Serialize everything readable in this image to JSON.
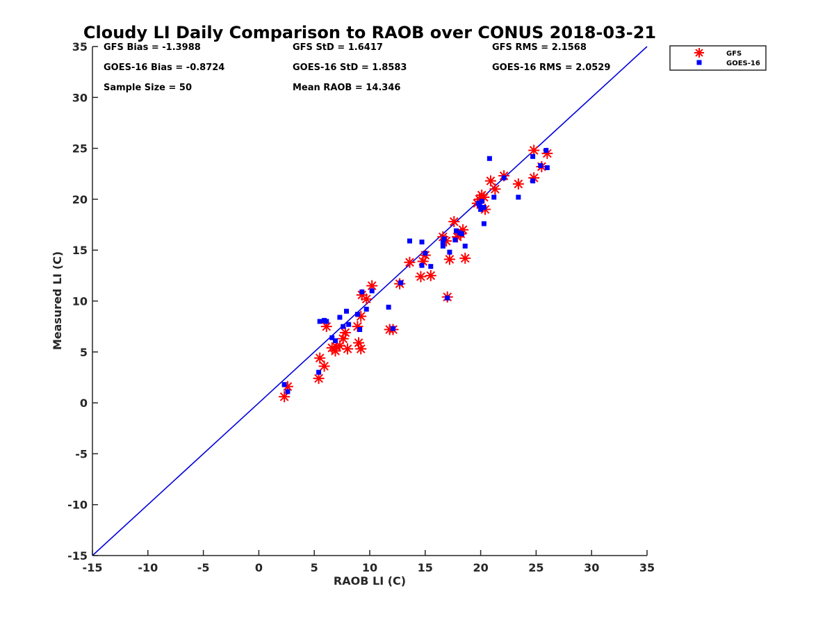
{
  "chart_data": {
    "type": "scatter",
    "title": "Cloudy LI Daily Comparison to RAOB over CONUS 2018-03-21",
    "xlabel": "RAOB LI (C)",
    "ylabel": "Measured LI (C)",
    "xlim": [
      -15,
      35
    ],
    "ylim": [
      -15,
      35
    ],
    "xticks": [
      -15,
      -10,
      -5,
      0,
      5,
      10,
      15,
      20,
      25,
      30,
      35
    ],
    "yticks": [
      -15,
      -10,
      -5,
      0,
      5,
      10,
      15,
      20,
      25,
      30,
      35
    ],
    "xtick_labels": [
      "-15",
      "-10",
      "-5",
      "0",
      "5",
      "10",
      "15",
      "20",
      "25",
      "30",
      "35"
    ],
    "ytick_labels": [
      "-15",
      "-10",
      "-5",
      "0",
      "5",
      "10",
      "15",
      "20",
      "25",
      "30",
      "35"
    ],
    "grid": false,
    "legend_position": "top-right outside",
    "reference_line": {
      "name": "1:1",
      "x": [
        -15,
        35
      ],
      "y": [
        -15,
        35
      ],
      "color": "#0000dd"
    },
    "stats": [
      [
        "GFS Bias = -1.3988",
        "GFS StD = 1.6417",
        "GFS RMS = 2.1568"
      ],
      [
        "GOES-16 Bias = -0.8724",
        "GOES-16 StD = 1.8583",
        "GOES-16 RMS = 2.0529"
      ],
      [
        "Sample Size = 50",
        "Mean RAOB = 14.346"
      ]
    ],
    "series": [
      {
        "name": "GFS",
        "marker": "asterisk",
        "color": "#ff0000",
        "points": [
          [
            2.3,
            0.6
          ],
          [
            2.6,
            1.6
          ],
          [
            5.4,
            2.4
          ],
          [
            5.5,
            4.4
          ],
          [
            5.9,
            3.6
          ],
          [
            6.1,
            7.5
          ],
          [
            6.6,
            5.4
          ],
          [
            6.9,
            5.1
          ],
          [
            7.0,
            5.5
          ],
          [
            7.3,
            5.6
          ],
          [
            7.6,
            6.3
          ],
          [
            7.8,
            6.9
          ],
          [
            8.0,
            5.3
          ],
          [
            8.9,
            7.5
          ],
          [
            9.0,
            5.9
          ],
          [
            9.2,
            5.3
          ],
          [
            9.2,
            8.5
          ],
          [
            9.3,
            10.6
          ],
          [
            9.7,
            10.2
          ],
          [
            10.2,
            11.5
          ],
          [
            11.8,
            7.2
          ],
          [
            12.1,
            7.2
          ],
          [
            12.7,
            11.7
          ],
          [
            13.6,
            13.8
          ],
          [
            14.6,
            12.4
          ],
          [
            14.8,
            13.9
          ],
          [
            15.0,
            14.5
          ],
          [
            15.5,
            12.5
          ],
          [
            16.6,
            16.3
          ],
          [
            17.0,
            10.4
          ],
          [
            17.2,
            14.1
          ],
          [
            17.6,
            17.8
          ],
          [
            17.9,
            16.3
          ],
          [
            18.2,
            16.6
          ],
          [
            18.4,
            17.0
          ],
          [
            18.6,
            14.2
          ],
          [
            19.9,
            20.0
          ],
          [
            20.1,
            20.4
          ],
          [
            20.4,
            19.0
          ],
          [
            20.9,
            21.8
          ],
          [
            21.3,
            21.0
          ],
          [
            22.1,
            22.3
          ],
          [
            23.4,
            21.5
          ],
          [
            24.8,
            22.1
          ],
          [
            24.8,
            24.8
          ],
          [
            25.5,
            23.2
          ],
          [
            26.0,
            24.5
          ],
          [
            19.7,
            19.6
          ],
          [
            16.9,
            15.9
          ],
          [
            20.3,
            20.2
          ]
        ]
      },
      {
        "name": "GOES-16",
        "marker": "square",
        "color": "#0000ff",
        "points": [
          [
            2.3,
            1.8
          ],
          [
            2.6,
            1.1
          ],
          [
            5.4,
            3.0
          ],
          [
            5.5,
            8.0
          ],
          [
            5.9,
            8.1
          ],
          [
            6.1,
            8.0
          ],
          [
            6.6,
            6.4
          ],
          [
            6.9,
            6.1
          ],
          [
            7.3,
            8.4
          ],
          [
            7.6,
            7.5
          ],
          [
            7.9,
            9.0
          ],
          [
            8.1,
            7.7
          ],
          [
            8.9,
            8.7
          ],
          [
            9.1,
            7.2
          ],
          [
            9.3,
            10.9
          ],
          [
            9.7,
            9.2
          ],
          [
            10.2,
            11.0
          ],
          [
            11.7,
            9.4
          ],
          [
            12.1,
            7.3
          ],
          [
            12.8,
            11.8
          ],
          [
            13.6,
            15.9
          ],
          [
            14.7,
            15.8
          ],
          [
            14.7,
            13.5
          ],
          [
            15.0,
            14.7
          ],
          [
            15.5,
            13.4
          ],
          [
            16.6,
            15.4
          ],
          [
            16.6,
            15.8
          ],
          [
            17.0,
            10.3
          ],
          [
            17.2,
            14.8
          ],
          [
            17.7,
            16.0
          ],
          [
            17.8,
            16.9
          ],
          [
            18.1,
            16.7
          ],
          [
            18.3,
            16.6
          ],
          [
            18.6,
            15.4
          ],
          [
            19.9,
            19.4
          ],
          [
            20.0,
            19.0
          ],
          [
            20.3,
            19.2
          ],
          [
            20.3,
            17.6
          ],
          [
            20.8,
            24.0
          ],
          [
            21.2,
            20.2
          ],
          [
            22.1,
            22.1
          ],
          [
            23.4,
            20.2
          ],
          [
            24.7,
            21.8
          ],
          [
            24.7,
            24.2
          ],
          [
            25.4,
            23.3
          ],
          [
            25.9,
            24.8
          ],
          [
            26.0,
            23.1
          ],
          [
            19.8,
            19.6
          ],
          [
            16.7,
            16.1
          ],
          [
            20.1,
            19.8
          ]
        ]
      }
    ]
  }
}
